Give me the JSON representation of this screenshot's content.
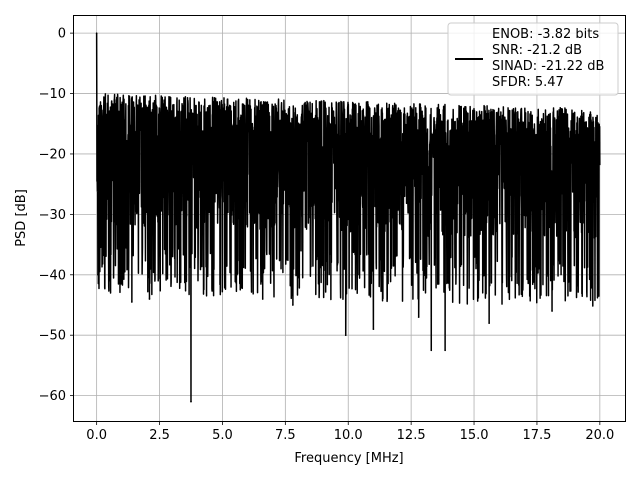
{
  "chart_data": {
    "type": "line",
    "title": "",
    "xlabel": "Frequency [MHz]",
    "ylabel": "PSD [dB]",
    "xlim": [
      -0.9,
      21
    ],
    "ylim": [
      -64.2,
      3
    ],
    "xticks": [
      0.0,
      2.5,
      5.0,
      7.5,
      10.0,
      12.5,
      15.0,
      17.5,
      20.0
    ],
    "xtick_labels": [
      "0.0",
      "2.5",
      "5.0",
      "7.5",
      "10.0",
      "12.5",
      "15.0",
      "17.5",
      "20.0"
    ],
    "yticks": [
      0,
      -10,
      -20,
      -30,
      -40,
      -50,
      -60
    ],
    "ytick_labels": [
      "0",
      "−10",
      "−20",
      "−30",
      "−40",
      "−50",
      "−60"
    ],
    "grid": true,
    "legend_position": "top-right",
    "legend": [
      "ENOB: -3.82 bits",
      "SNR: -21.2 dB",
      "SINAD: -21.22 dB",
      "SFDR: 5.47"
    ],
    "series": [
      {
        "color": "#000000",
        "x_range": [
          0,
          20
        ],
        "typical_range_db": [
          -35,
          -10
        ],
        "points": [
          {
            "x": 0.0,
            "y": 0.0
          },
          {
            "x": 0.05,
            "y": -40
          },
          {
            "x": 0.5,
            "y": -41
          },
          {
            "x": 1.4,
            "y": -44.5
          },
          {
            "x": 2.1,
            "y": -44
          },
          {
            "x": 3.75,
            "y": -61
          },
          {
            "x": 6.6,
            "y": -44
          },
          {
            "x": 7.8,
            "y": -45
          },
          {
            "x": 9.9,
            "y": -50
          },
          {
            "x": 11.0,
            "y": -49
          },
          {
            "x": 12.8,
            "y": -47
          },
          {
            "x": 13.3,
            "y": -52.5
          },
          {
            "x": 13.85,
            "y": -52.5
          },
          {
            "x": 15.6,
            "y": -48
          },
          {
            "x": 18.1,
            "y": -46
          }
        ]
      }
    ]
  }
}
